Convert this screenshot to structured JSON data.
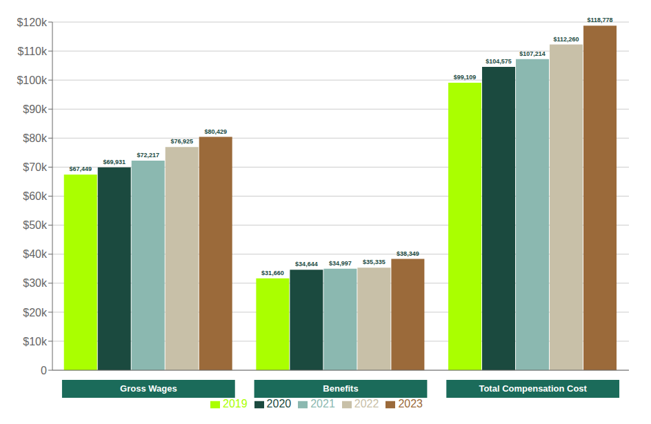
{
  "chart_data": {
    "type": "bar",
    "categories": [
      "Gross Wages",
      "Benefits",
      "Total Compensation Cost"
    ],
    "series": [
      {
        "name": "2019",
        "color": "#AAFF00",
        "values": [
          67449,
          31660,
          99109
        ],
        "value_labels": [
          "$67,449",
          "$31,660",
          "$99,109"
        ]
      },
      {
        "name": "2020",
        "color": "#1B4A3F",
        "values": [
          69931,
          34644,
          104575
        ],
        "value_labels": [
          "$69,931",
          "$34,644",
          "$104,575"
        ]
      },
      {
        "name": "2021",
        "color": "#8BB8B0",
        "values": [
          72217,
          34997,
          107214
        ],
        "value_labels": [
          "$72,217",
          "$34,997",
          "$107,214"
        ]
      },
      {
        "name": "2022",
        "color": "#C8C0A8",
        "values": [
          76925,
          35335,
          112260
        ],
        "value_labels": [
          "$76,925",
          "$35,335",
          "$112,260"
        ]
      },
      {
        "name": "2023",
        "color": "#9B6A3A",
        "values": [
          80429,
          38349,
          118778
        ],
        "value_labels": [
          "$80,429",
          "$38,349",
          "$118,778"
        ]
      }
    ],
    "ylim": [
      0,
      120000
    ],
    "yticks": [
      0,
      {
        "value": 10000,
        "label": "$10k"
      },
      {
        "value": 20000,
        "label": "$20k"
      },
      {
        "value": 30000,
        "label": "$30k"
      },
      {
        "value": 40000,
        "label": "$40k"
      },
      {
        "value": 50000,
        "label": "$50k"
      },
      {
        "value": 60000,
        "label": "$60k"
      },
      {
        "value": 70000,
        "label": "$70k"
      },
      {
        "value": 80000,
        "label": "$80k"
      },
      {
        "value": 90000,
        "label": "$90k"
      },
      {
        "value": 100000,
        "label": "$100k"
      },
      {
        "value": 110000,
        "label": "$110k"
      },
      {
        "value": 120000,
        "label": "$120k"
      }
    ],
    "grid": true,
    "data_labels": true,
    "legend": "bottom"
  }
}
